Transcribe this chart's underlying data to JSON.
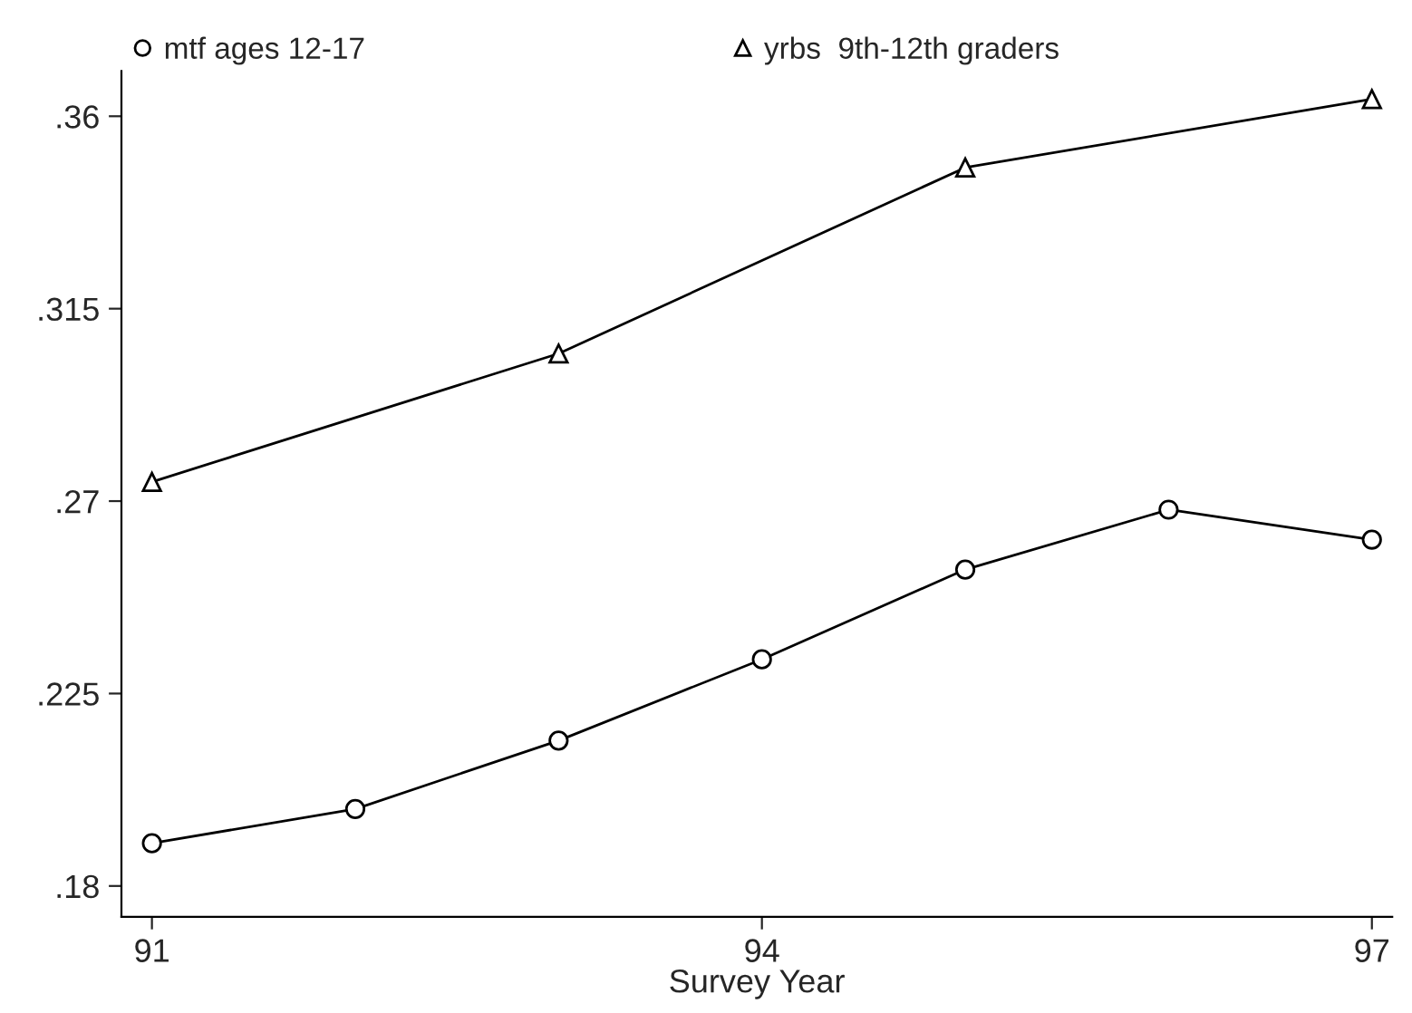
{
  "chart_data": {
    "type": "line",
    "xlabel": "Survey Year",
    "x": [
      91,
      92,
      93,
      94,
      95,
      96,
      97
    ],
    "series": [
      {
        "name": "mtf ages 12-17",
        "color": "#000000",
        "marker": "circle",
        "values": [
          0.19,
          0.198,
          0.214,
          0.233,
          0.254,
          0.268,
          0.261
        ]
      },
      {
        "name": "yrbs  9th-12th graders",
        "color": "#000000",
        "marker": "triangle",
        "x": [
          91,
          93,
          95,
          97
        ],
        "values": [
          0.2745,
          0.3045,
          0.348,
          0.364
        ]
      }
    ],
    "xlim": [
      90.85,
      97.1
    ],
    "ylim": [
      0.1728,
      0.3706
    ],
    "xticks": [
      91,
      94,
      97
    ],
    "yticks": [
      {
        "value": 0.18,
        "label": ".18"
      },
      {
        "value": 0.225,
        "label": ".225"
      },
      {
        "value": 0.27,
        "label": ".27"
      },
      {
        "value": 0.315,
        "label": ".315"
      },
      {
        "value": 0.36,
        "label": ".36"
      }
    ],
    "grid": false,
    "legend": "top",
    "line_style": "solid"
  }
}
